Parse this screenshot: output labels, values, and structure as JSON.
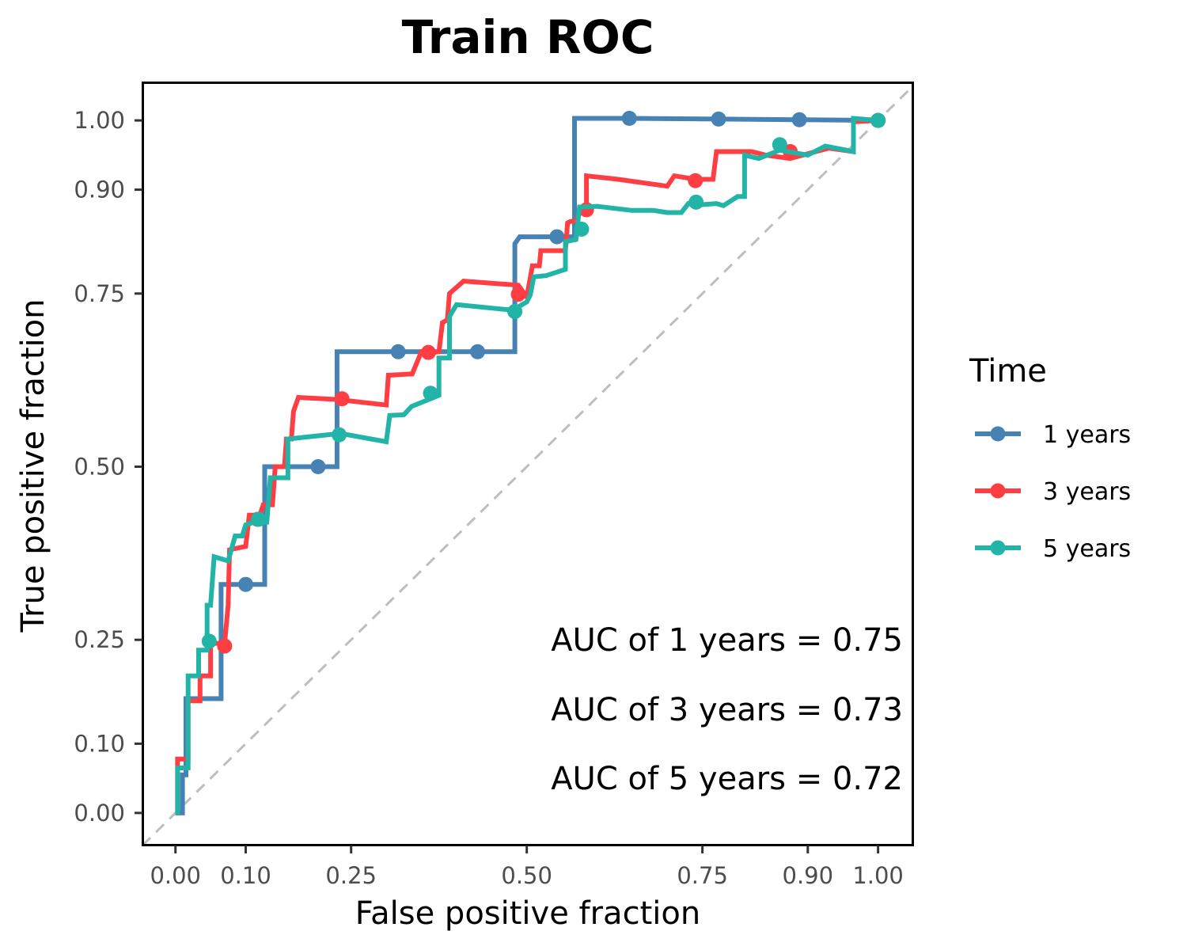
{
  "chart_data": {
    "type": "line",
    "title": "Train ROC",
    "xlabel": "False positive fraction",
    "ylabel": "True positive fraction",
    "xlim": [
      -0.047,
      1.05
    ],
    "ylim": [
      -0.047,
      1.055
    ],
    "x_ticks": [
      0.0,
      0.1,
      0.25,
      0.5,
      0.75,
      0.9,
      1.0
    ],
    "x_tick_labels": [
      "0.00",
      "0.10",
      "0.25",
      "0.50",
      "0.75",
      "0.90",
      "1.00"
    ],
    "y_ticks": [
      0.0,
      0.1,
      0.25,
      0.5,
      0.75,
      0.9,
      1.0
    ],
    "y_tick_labels": [
      "0.00",
      "0.10",
      "0.25",
      "0.50",
      "0.75",
      "0.90",
      "1.00"
    ],
    "grid": false,
    "diagonal": {
      "from": [
        0,
        0
      ],
      "to": [
        1,
        1
      ],
      "color": "#bebebe",
      "dashed": true
    },
    "legend": {
      "title": "Time",
      "position": "right"
    },
    "series": [
      {
        "name": "1 years",
        "color": "#4682b4",
        "points": [
          [
            0,
            0
          ],
          [
            0.01,
            0
          ],
          [
            0.01,
            0.055
          ],
          [
            0.015,
            0.055
          ],
          [
            0.015,
            0.165
          ],
          [
            0.065,
            0.165
          ],
          [
            0.065,
            0.33
          ],
          [
            0.1,
            0.33
          ],
          [
            0.127,
            0.33
          ],
          [
            0.127,
            0.5
          ],
          [
            0.203,
            0.5
          ],
          [
            0.23,
            0.5
          ],
          [
            0.23,
            0.666
          ],
          [
            0.317,
            0.666
          ],
          [
            0.43,
            0.666
          ],
          [
            0.483,
            0.666
          ],
          [
            0.483,
            0.822
          ],
          [
            0.49,
            0.832
          ],
          [
            0.543,
            0.832
          ],
          [
            0.568,
            0.832
          ],
          [
            0.568,
            1.003
          ],
          [
            0.646,
            1.003
          ],
          [
            0.773,
            1.002
          ],
          [
            0.888,
            1.001
          ],
          [
            1,
            1.0
          ]
        ],
        "markers": [
          [
            0.1,
            0.33
          ],
          [
            0.203,
            0.5
          ],
          [
            0.317,
            0.666
          ],
          [
            0.43,
            0.666
          ],
          [
            0.543,
            0.832
          ],
          [
            0.646,
            1.003
          ],
          [
            0.773,
            1.002
          ],
          [
            0.888,
            1.001
          ],
          [
            1,
            1.0
          ]
        ]
      },
      {
        "name": "3 years",
        "color": "#ff3e43",
        "points": [
          [
            0,
            0
          ],
          [
            0.003,
            0
          ],
          [
            0.003,
            0.078
          ],
          [
            0.018,
            0.078
          ],
          [
            0.018,
            0.162
          ],
          [
            0.035,
            0.162
          ],
          [
            0.035,
            0.198
          ],
          [
            0.05,
            0.198
          ],
          [
            0.05,
            0.245
          ],
          [
            0.07,
            0.245
          ],
          [
            0.075,
            0.3
          ],
          [
            0.077,
            0.38
          ],
          [
            0.1,
            0.385
          ],
          [
            0.105,
            0.43
          ],
          [
            0.12,
            0.43
          ],
          [
            0.125,
            0.445
          ],
          [
            0.138,
            0.445
          ],
          [
            0.142,
            0.5
          ],
          [
            0.155,
            0.5
          ],
          [
            0.158,
            0.54
          ],
          [
            0.165,
            0.54
          ],
          [
            0.168,
            0.58
          ],
          [
            0.175,
            0.6
          ],
          [
            0.23,
            0.597
          ],
          [
            0.3,
            0.589
          ],
          [
            0.303,
            0.632
          ],
          [
            0.337,
            0.634
          ],
          [
            0.35,
            0.666
          ],
          [
            0.36,
            0.664
          ],
          [
            0.375,
            0.666
          ],
          [
            0.38,
            0.708
          ],
          [
            0.387,
            0.712
          ],
          [
            0.39,
            0.75
          ],
          [
            0.41,
            0.768
          ],
          [
            0.488,
            0.762
          ],
          [
            0.5,
            0.745
          ],
          [
            0.508,
            0.79
          ],
          [
            0.518,
            0.79
          ],
          [
            0.52,
            0.812
          ],
          [
            0.555,
            0.812
          ],
          [
            0.558,
            0.852
          ],
          [
            0.562,
            0.854
          ],
          [
            0.57,
            0.855
          ],
          [
            0.575,
            0.865
          ],
          [
            0.585,
            0.872
          ],
          [
            0.585,
            0.92
          ],
          [
            0.63,
            0.915
          ],
          [
            0.7,
            0.905
          ],
          [
            0.71,
            0.92
          ],
          [
            0.74,
            0.915
          ],
          [
            0.765,
            0.915
          ],
          [
            0.77,
            0.955
          ],
          [
            0.82,
            0.955
          ],
          [
            0.84,
            0.95
          ],
          [
            0.875,
            0.945
          ],
          [
            0.93,
            0.96
          ],
          [
            0.965,
            0.955
          ],
          [
            0.965,
            0.998
          ],
          [
            1,
            1.0
          ]
        ],
        "markers": [
          [
            0.07,
            0.241
          ],
          [
            0.117,
            0.424
          ],
          [
            0.237,
            0.598
          ],
          [
            0.36,
            0.665
          ],
          [
            0.488,
            0.749
          ],
          [
            0.585,
            0.871
          ],
          [
            0.74,
            0.913
          ],
          [
            0.875,
            0.955
          ],
          [
            1,
            1.0
          ]
        ]
      },
      {
        "name": "5 years",
        "color": "#21b4a7",
        "points": [
          [
            0,
            0
          ],
          [
            0.003,
            0
          ],
          [
            0.003,
            0.065
          ],
          [
            0.018,
            0.065
          ],
          [
            0.018,
            0.198
          ],
          [
            0.033,
            0.198
          ],
          [
            0.033,
            0.235
          ],
          [
            0.045,
            0.235
          ],
          [
            0.045,
            0.3
          ],
          [
            0.05,
            0.3
          ],
          [
            0.055,
            0.37
          ],
          [
            0.075,
            0.364
          ],
          [
            0.085,
            0.4
          ],
          [
            0.095,
            0.4
          ],
          [
            0.1,
            0.416
          ],
          [
            0.112,
            0.42
          ],
          [
            0.115,
            0.42
          ],
          [
            0.13,
            0.42
          ],
          [
            0.135,
            0.484
          ],
          [
            0.16,
            0.484
          ],
          [
            0.16,
            0.54
          ],
          [
            0.235,
            0.548
          ],
          [
            0.3,
            0.536
          ],
          [
            0.305,
            0.574
          ],
          [
            0.325,
            0.575
          ],
          [
            0.336,
            0.587
          ],
          [
            0.375,
            0.603
          ],
          [
            0.375,
            0.657
          ],
          [
            0.39,
            0.657
          ],
          [
            0.39,
            0.717
          ],
          [
            0.4,
            0.734
          ],
          [
            0.48,
            0.726
          ],
          [
            0.5,
            0.738
          ],
          [
            0.505,
            0.748
          ],
          [
            0.51,
            0.774
          ],
          [
            0.528,
            0.776
          ],
          [
            0.555,
            0.785
          ],
          [
            0.555,
            0.825
          ],
          [
            0.57,
            0.828
          ],
          [
            0.575,
            0.875
          ],
          [
            0.6,
            0.876
          ],
          [
            0.65,
            0.87
          ],
          [
            0.68,
            0.87
          ],
          [
            0.7,
            0.867
          ],
          [
            0.72,
            0.867
          ],
          [
            0.73,
            0.88
          ],
          [
            0.745,
            0.878
          ],
          [
            0.77,
            0.88
          ],
          [
            0.78,
            0.877
          ],
          [
            0.8,
            0.89
          ],
          [
            0.81,
            0.89
          ],
          [
            0.81,
            0.95
          ],
          [
            0.83,
            0.945
          ],
          [
            0.86,
            0.957
          ],
          [
            0.9,
            0.95
          ],
          [
            0.925,
            0.963
          ],
          [
            0.965,
            0.955
          ],
          [
            0.965,
            1.003
          ],
          [
            1,
            1.0
          ]
        ],
        "markers": [
          [
            0.048,
            0.248
          ],
          [
            0.118,
            0.424
          ],
          [
            0.233,
            0.546
          ],
          [
            0.363,
            0.606
          ],
          [
            0.483,
            0.724
          ],
          [
            0.578,
            0.843
          ],
          [
            0.741,
            0.882
          ],
          [
            0.86,
            0.965
          ],
          [
            1,
            1.0
          ]
        ]
      }
    ],
    "annotations": [
      "AUC of 1 years = 0.75",
      "AUC of 3 years = 0.73",
      "AUC of 5 years = 0.72"
    ]
  }
}
